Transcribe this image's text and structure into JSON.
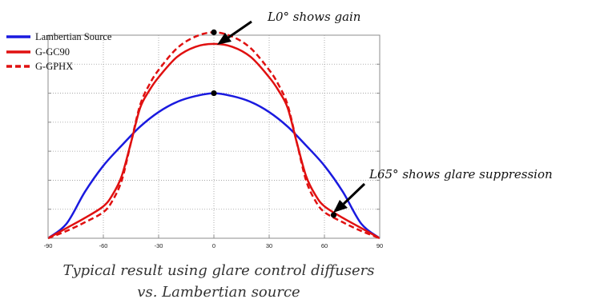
{
  "chart_data": {
    "type": "line",
    "title": "",
    "xlabel": "",
    "ylabel": "",
    "xlim": [
      -90,
      90
    ],
    "ylim": [
      0,
      1.4
    ],
    "x_ticks": [
      -90,
      -60,
      -30,
      0,
      30,
      60,
      90
    ],
    "x_tick_labels": [
      "-90",
      "-60",
      "-30",
      "0",
      "30",
      "60",
      "90"
    ],
    "y_grid": [
      0.2,
      0.4,
      0.6,
      0.8,
      1.0,
      1.2
    ],
    "grid": true,
    "legend_position": "top-left",
    "series": [
      {
        "name": "Lambertian Source",
        "color": "#1a1adf",
        "style": "solid",
        "x": [
          -90,
          -80,
          -70,
          -60,
          -50,
          -40,
          -30,
          -20,
          -10,
          0,
          10,
          20,
          30,
          40,
          50,
          60,
          70,
          80,
          90
        ],
        "y": [
          0.0,
          0.1,
          0.32,
          0.5,
          0.64,
          0.77,
          0.87,
          0.94,
          0.98,
          1.0,
          0.98,
          0.94,
          0.87,
          0.77,
          0.64,
          0.5,
          0.32,
          0.1,
          0.0
        ]
      },
      {
        "name": "G-GC90",
        "color": "#e01010",
        "style": "solid",
        "x": [
          -90,
          -80,
          -70,
          -60,
          -55,
          -50,
          -45,
          -40,
          -35,
          -30,
          -20,
          -10,
          0,
          10,
          20,
          30,
          35,
          40,
          45,
          50,
          55,
          60,
          70,
          80,
          90
        ],
        "y": [
          0.0,
          0.07,
          0.14,
          0.22,
          0.3,
          0.43,
          0.66,
          0.9,
          1.02,
          1.11,
          1.25,
          1.32,
          1.34,
          1.32,
          1.25,
          1.11,
          1.02,
          0.9,
          0.66,
          0.43,
          0.3,
          0.22,
          0.14,
          0.07,
          0.0
        ]
      },
      {
        "name": "G-GPHX",
        "color": "#e01010",
        "style": "dashed",
        "x": [
          -90,
          -80,
          -70,
          -60,
          -55,
          -50,
          -45,
          -40,
          -35,
          -30,
          -20,
          -10,
          0,
          10,
          20,
          30,
          35,
          40,
          45,
          50,
          55,
          60,
          70,
          80,
          90
        ],
        "y": [
          0.0,
          0.05,
          0.11,
          0.18,
          0.26,
          0.4,
          0.66,
          0.92,
          1.06,
          1.16,
          1.31,
          1.39,
          1.42,
          1.39,
          1.31,
          1.16,
          1.06,
          0.92,
          0.66,
          0.4,
          0.26,
          0.18,
          0.11,
          0.05,
          0.0
        ]
      }
    ],
    "markers": [
      {
        "x": 0,
        "y": 1.0
      },
      {
        "x": 0,
        "y": 1.42
      },
      {
        "x": 65,
        "y": 0.16
      }
    ],
    "annotations": [
      {
        "text": "L0° shows gain",
        "points_to": {
          "x": 0,
          "y": 1.42
        }
      },
      {
        "text": "L65° shows glare suppression",
        "points_to": {
          "x": 65,
          "y": 0.16
        }
      }
    ]
  },
  "caption": {
    "line1": "Typical result using glare control diffusers",
    "line2": "vs. Lambertian source"
  },
  "colors": {
    "frame": "#8c8c8c",
    "grid": "#9a9a9a",
    "annotation_arrow": "#000000"
  }
}
